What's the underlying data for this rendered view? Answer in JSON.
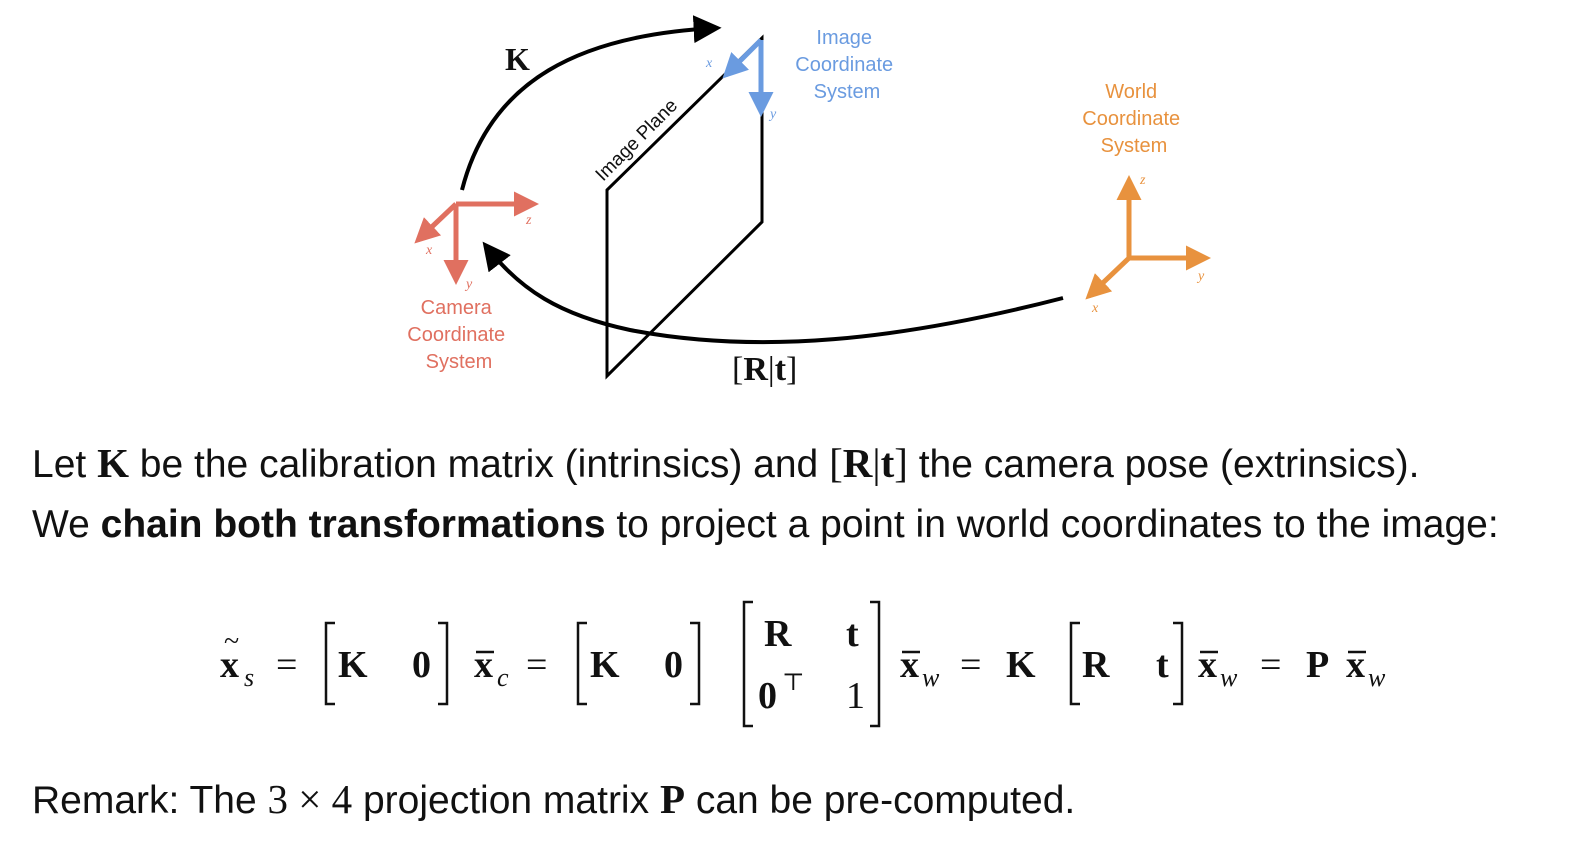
{
  "diagram": {
    "k_label": "K",
    "rt_label_open": "[",
    "rt_label_R": "R",
    "rt_label_bar": "|",
    "rt_label_t": "t",
    "rt_label_close": "]",
    "image_plane_label": "Image Plane",
    "image_cs": {
      "lines": [
        "Image",
        "Coordinate",
        "System"
      ],
      "x": "x",
      "y": "y",
      "color": "#6a9be0"
    },
    "camera_cs": {
      "lines": [
        "Camera",
        "Coordinate",
        "System"
      ],
      "x": "x",
      "y": "y",
      "z": "z",
      "color": "#e07060"
    },
    "world_cs": {
      "lines": [
        "World",
        "Coordinate",
        "System"
      ],
      "x": "x",
      "y": "y",
      "z": "z",
      "color": "#e8923e"
    }
  },
  "text": {
    "line1": {
      "p1": "Let ",
      "K": "K",
      "p2": " be the calibration matrix (intrinsics) and ",
      "rt_open": "[",
      "R": "R",
      "bar": "|",
      "t": "t",
      "rt_close": "]",
      "p3": " the camera pose (extrinsics)."
    },
    "line2": {
      "p1": "We ",
      "bold": "chain both transformations",
      "p2": " to project a point in world coordinates to the image:"
    },
    "remark": {
      "p1": "Remark: The ",
      "dim3": "3",
      "times": " × ",
      "dim4": "4",
      "p2": " projection matrix ",
      "P": "P",
      "p3": " can be pre-computed."
    }
  },
  "equation": {
    "lhs_x": "x",
    "lhs_sub": "s",
    "eq": "=",
    "K": "K",
    "zero": "0",
    "xc_sub": "c",
    "R": "R",
    "t": "t",
    "zeroT": "0",
    "T": "⊤",
    "one": "1",
    "xw_sub": "w",
    "P": "P"
  }
}
